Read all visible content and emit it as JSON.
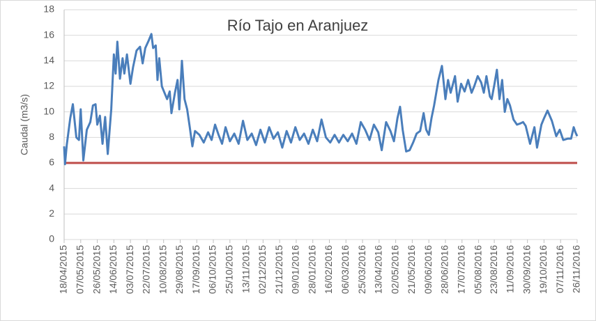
{
  "chart_data": {
    "type": "line",
    "title": "Río Tajo en Aranjuez",
    "y_label": "Caudal (m3/s)",
    "ylim": [
      0,
      18
    ],
    "yticks": [
      0,
      2,
      4,
      6,
      8,
      10,
      12,
      14,
      16,
      18
    ],
    "grid": true,
    "xlim": [
      "18/04/2015",
      "26/11/2016"
    ],
    "xticks": [
      "18/04/2015",
      "07/05/2015",
      "26/05/2015",
      "14/06/2015",
      "03/07/2015",
      "22/07/2015",
      "10/08/2015",
      "29/08/2015",
      "17/09/2015",
      "06/10/2015",
      "25/10/2015",
      "13/11/2015",
      "02/12/2015",
      "21/12/2015",
      "09/01/2016",
      "28/01/2016",
      "16/02/2016",
      "06/03/2016",
      "25/03/2016",
      "13/04/2016",
      "02/05/2016",
      "21/05/2016",
      "09/06/2016",
      "28/06/2016",
      "17/07/2016",
      "05/08/2016",
      "23/08/2016",
      "11/09/2016",
      "30/09/2016",
      "19/10/2016",
      "07/11/2016",
      "26/11/2016"
    ],
    "threshold": {
      "value": 6,
      "color": "#be4b48"
    },
    "series": [
      {
        "color": "#4a7ebb",
        "x": [
          "18/04/2015",
          "19/04/2015",
          "21/04/2015",
          "25/04/2015",
          "28/04/2015",
          "02/05/2015",
          "05/05/2015",
          "07/05/2015",
          "10/05/2015",
          "14/05/2015",
          "18/05/2015",
          "21/05/2015",
          "24/05/2015",
          "26/05/2015",
          "29/05/2015",
          "01/06/2015",
          "04/06/2015",
          "07/06/2015",
          "11/06/2015",
          "14/06/2015",
          "16/06/2015",
          "18/06/2015",
          "21/06/2015",
          "24/06/2015",
          "26/06/2015",
          "29/06/2015",
          "03/07/2015",
          "06/07/2015",
          "10/07/2015",
          "14/07/2015",
          "17/07/2015",
          "20/07/2015",
          "24/07/2015",
          "27/07/2015",
          "29/07/2015",
          "01/08/2015",
          "03/08/2015",
          "05/08/2015",
          "08/08/2015",
          "11/08/2015",
          "14/08/2015",
          "17/08/2015",
          "19/08/2015",
          "23/08/2015",
          "26/08/2015",
          "28/08/2015",
          "31/08/2015",
          "03/09/2015",
          "06/09/2015",
          "09/09/2015",
          "12/09/2015",
          "15/09/2015",
          "20/09/2015",
          "25/09/2015",
          "30/09/2015",
          "04/10/2015",
          "08/10/2015",
          "12/10/2015",
          "16/10/2015",
          "20/10/2015",
          "25/10/2015",
          "30/10/2015",
          "04/11/2015",
          "09/11/2015",
          "14/11/2015",
          "19/11/2015",
          "24/11/2015",
          "29/11/2015",
          "04/12/2015",
          "09/12/2015",
          "14/12/2015",
          "19/12/2015",
          "24/12/2015",
          "29/12/2015",
          "03/01/2016",
          "08/01/2016",
          "13/01/2016",
          "18/01/2016",
          "23/01/2016",
          "28/01/2016",
          "02/02/2016",
          "07/02/2016",
          "12/02/2016",
          "17/02/2016",
          "22/02/2016",
          "27/02/2016",
          "03/03/2016",
          "08/03/2016",
          "13/03/2016",
          "18/03/2016",
          "23/03/2016",
          "28/03/2016",
          "02/04/2016",
          "07/04/2016",
          "12/04/2016",
          "16/04/2016",
          "21/04/2016",
          "26/04/2016",
          "30/04/2016",
          "04/05/2016",
          "07/05/2016",
          "10/05/2016",
          "14/05/2016",
          "18/05/2016",
          "22/05/2016",
          "26/05/2016",
          "30/05/2016",
          "03/06/2016",
          "06/06/2016",
          "09/06/2016",
          "12/06/2016",
          "15/06/2016",
          "20/06/2016",
          "24/06/2016",
          "26/06/2016",
          "28/06/2016",
          "01/07/2016",
          "04/07/2016",
          "09/07/2016",
          "12/07/2016",
          "16/07/2016",
          "20/07/2016",
          "24/07/2016",
          "28/07/2016",
          "31/07/2016",
          "04/08/2016",
          "08/08/2016",
          "11/08/2016",
          "14/08/2016",
          "18/08/2016",
          "20/08/2016",
          "23/08/2016",
          "26/08/2016",
          "29/08/2016",
          "01/09/2016",
          "04/09/2016",
          "07/09/2016",
          "10/09/2016",
          "14/09/2016",
          "18/09/2016",
          "22/09/2016",
          "25/09/2016",
          "28/09/2016",
          "03/10/2016",
          "08/10/2016",
          "11/10/2016",
          "16/10/2016",
          "19/10/2016",
          "23/10/2016",
          "28/10/2016",
          "02/11/2016",
          "06/11/2016",
          "10/11/2016",
          "15/11/2016",
          "19/11/2016",
          "22/11/2016",
          "24/11/2016",
          "26/11/2016"
        ],
        "values": [
          7.3,
          5.9,
          7.4,
          9.5,
          10.6,
          8.0,
          7.8,
          10.2,
          6.2,
          8.6,
          9.2,
          10.5,
          10.6,
          9.0,
          9.7,
          7.5,
          9.6,
          6.7,
          10.2,
          14.5,
          13.0,
          15.5,
          12.6,
          14.2,
          13.0,
          14.5,
          12.2,
          13.5,
          14.8,
          15.1,
          13.8,
          15.0,
          15.6,
          16.1,
          15.0,
          15.2,
          12.5,
          14.2,
          12.0,
          11.5,
          11.0,
          11.6,
          9.9,
          11.5,
          12.5,
          10.2,
          14.0,
          11.0,
          10.2,
          8.8,
          7.3,
          8.5,
          8.2,
          7.6,
          8.4,
          7.8,
          9.0,
          8.2,
          7.5,
          8.8,
          7.7,
          8.3,
          7.5,
          9.3,
          7.8,
          8.3,
          7.4,
          8.6,
          7.6,
          8.8,
          7.9,
          8.4,
          7.2,
          8.5,
          7.6,
          8.8,
          7.8,
          8.3,
          7.5,
          8.6,
          7.7,
          9.4,
          8.0,
          7.6,
          8.2,
          7.6,
          8.2,
          7.7,
          8.3,
          7.5,
          9.2,
          8.6,
          7.8,
          9.0,
          8.4,
          7.0,
          9.2,
          8.5,
          7.7,
          9.5,
          10.4,
          8.6,
          6.9,
          7.0,
          7.6,
          8.3,
          8.5,
          9.9,
          8.6,
          8.2,
          9.5,
          10.5,
          12.5,
          13.6,
          12.3,
          11.0,
          12.5,
          11.5,
          12.8,
          10.8,
          12.2,
          11.6,
          12.5,
          11.5,
          12.0,
          12.8,
          12.3,
          11.5,
          12.8,
          11.2,
          11.0,
          12.1,
          13.3,
          11.0,
          12.5,
          10.0,
          11.0,
          10.5,
          9.4,
          9.0,
          9.1,
          9.2,
          8.9,
          7.5,
          8.8,
          7.2,
          9.0,
          9.5,
          10.1,
          9.3,
          8.1,
          8.6,
          7.8,
          7.9,
          7.9,
          8.8,
          8.4,
          8.1
        ]
      }
    ]
  }
}
